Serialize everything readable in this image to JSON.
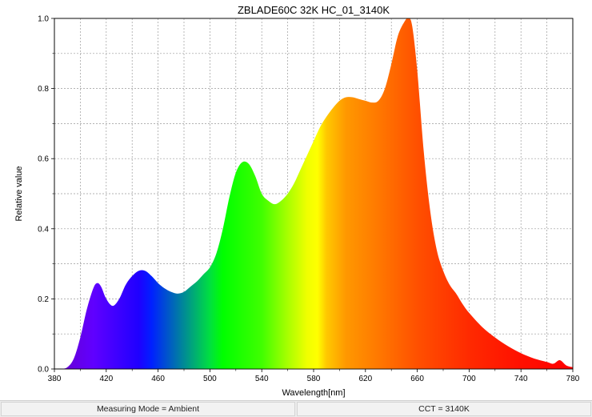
{
  "chart_data": {
    "type": "area",
    "title": "ZBLADE60C 32K HC_01_3140K",
    "xlabel": "Wavelength[nm]",
    "ylabel": "Relative value",
    "xlim": [
      380,
      780
    ],
    "ylim": [
      0,
      1.0
    ],
    "xticks": [
      380,
      420,
      460,
      500,
      540,
      580,
      620,
      660,
      700,
      740,
      780
    ],
    "yticks": [
      0.0,
      0.2,
      0.4,
      0.6,
      0.8,
      1.0
    ],
    "ytick_labels": [
      "0.0",
      "0.2",
      "0.4",
      "0.6",
      "0.8",
      "1.0"
    ],
    "grid": true,
    "fill": "visible-spectrum-gradient",
    "x": [
      380,
      385,
      390,
      395,
      400,
      405,
      410,
      413,
      416,
      420,
      425,
      430,
      435,
      440,
      445,
      450,
      455,
      460,
      465,
      470,
      475,
      480,
      485,
      490,
      495,
      500,
      505,
      510,
      515,
      520,
      525,
      530,
      535,
      540,
      545,
      550,
      555,
      560,
      565,
      570,
      575,
      580,
      585,
      590,
      595,
      600,
      605,
      610,
      615,
      620,
      625,
      630,
      635,
      640,
      645,
      650,
      653,
      656,
      660,
      665,
      670,
      675,
      680,
      685,
      690,
      695,
      700,
      710,
      720,
      730,
      740,
      750,
      760,
      765,
      770,
      775,
      780
    ],
    "y": [
      0.0,
      0.0,
      0.005,
      0.03,
      0.09,
      0.17,
      0.23,
      0.245,
      0.235,
      0.2,
      0.18,
      0.2,
      0.24,
      0.265,
      0.28,
      0.28,
      0.265,
      0.245,
      0.23,
      0.22,
      0.215,
      0.22,
      0.235,
      0.25,
      0.27,
      0.29,
      0.33,
      0.4,
      0.49,
      0.56,
      0.59,
      0.585,
      0.55,
      0.5,
      0.48,
      0.47,
      0.48,
      0.5,
      0.53,
      0.57,
      0.61,
      0.65,
      0.69,
      0.72,
      0.745,
      0.765,
      0.775,
      0.775,
      0.77,
      0.765,
      0.76,
      0.765,
      0.8,
      0.87,
      0.95,
      0.99,
      1.0,
      0.98,
      0.85,
      0.62,
      0.45,
      0.34,
      0.28,
      0.24,
      0.215,
      0.185,
      0.16,
      0.12,
      0.09,
      0.065,
      0.045,
      0.03,
      0.02,
      0.015,
      0.025,
      0.01,
      0.005
    ]
  },
  "status": {
    "measuring_mode": "Measuring Mode = Ambient",
    "cct": "CCT = 3140K"
  }
}
